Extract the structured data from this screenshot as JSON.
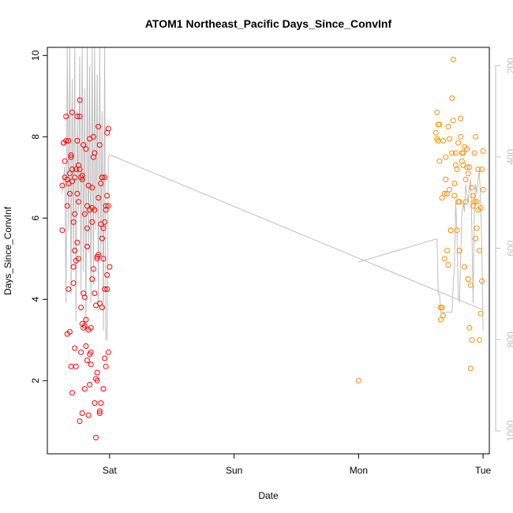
{
  "chart_data": {
    "type": "scatter",
    "title": "ATOM1 Northeast_Pacific Days_Since_ConvInf",
    "xlabel": "Date",
    "ylabel": "Days_Since_ConvInf",
    "xlim": [
      -0.5,
      3.05
    ],
    "x_ticks": [
      {
        "value": 0,
        "label": "Sat"
      },
      {
        "value": 1,
        "label": "Sun"
      },
      {
        "value": 2,
        "label": "Mon"
      },
      {
        "value": 3,
        "label": "Tue"
      }
    ],
    "ylim": [
      0.2,
      10.2
    ],
    "y_ticks": [
      2,
      4,
      6,
      8,
      10
    ],
    "y2_axis": {
      "color": "#bebebe",
      "ylim": [
        1050,
        160
      ],
      "ticks": [
        200,
        400,
        600,
        800,
        1000
      ]
    },
    "series": [
      {
        "color": "#ff0000",
        "x": [
          -0.38,
          -0.37,
          -0.36,
          -0.35,
          -0.34,
          -0.33,
          -0.32,
          -0.31,
          -0.3,
          -0.29,
          -0.28,
          -0.27,
          -0.26,
          -0.25,
          -0.24,
          -0.23,
          -0.22,
          -0.21,
          -0.2,
          -0.19,
          -0.18,
          -0.17,
          -0.16,
          -0.15,
          -0.14,
          -0.13,
          -0.12,
          -0.11,
          -0.1,
          -0.09,
          -0.08,
          -0.07,
          -0.06,
          -0.05,
          -0.04,
          -0.03,
          -0.02,
          -0.01,
          -0.38,
          -0.36,
          -0.34,
          -0.32,
          -0.3,
          -0.28,
          -0.26,
          -0.24,
          -0.22,
          -0.2,
          -0.18,
          -0.16,
          -0.14,
          -0.12,
          -0.1,
          -0.08,
          -0.06,
          -0.04,
          -0.02,
          -0.37,
          -0.35,
          -0.33,
          -0.31,
          -0.29,
          -0.27,
          -0.25,
          -0.23,
          -0.21,
          -0.19,
          -0.17,
          -0.15,
          -0.13,
          -0.11,
          -0.09,
          -0.07,
          -0.05,
          -0.03,
          -0.01,
          -0.3,
          -0.28,
          -0.26,
          -0.24,
          -0.22,
          -0.2,
          -0.18,
          -0.16,
          -0.14,
          -0.12,
          -0.1,
          -0.08,
          -0.06,
          -0.04,
          -0.02,
          -0.34,
          -0.32,
          -0.3,
          -0.28,
          -0.26,
          -0.24,
          -0.22,
          -0.2,
          -0.18,
          -0.16,
          -0.14,
          -0.12,
          -0.1,
          -0.08,
          -0.06,
          -0.04,
          -0.02,
          -0.0,
          -0.33,
          -0.31,
          -0.29,
          -0.27,
          -0.25,
          -0.23,
          -0.21,
          -0.19,
          -0.17,
          -0.15,
          -0.13,
          -0.11,
          -0.09,
          -0.07,
          -0.05,
          -0.03,
          -0.01
        ],
        "y": [
          6.8,
          7.85,
          7.4,
          7.9,
          6.3,
          4.25,
          3.2,
          7.5,
          7.2,
          5.9,
          7.0,
          7.2,
          6.6,
          6.4,
          8.9,
          3.8,
          3.4,
          4.15,
          6.1,
          7.7,
          5.3,
          6.8,
          1.9,
          2.7,
          4.5,
          7.5,
          7.6,
          2.05,
          5.0,
          6.5,
          7.8,
          6.85,
          7.0,
          5.75,
          4.25,
          6.3,
          4.25,
          6.3,
          5.7,
          7.0,
          3.15,
          7.1,
          8.6,
          6.1,
          5.4,
          7.2,
          6.95,
          1.8,
          5.75,
          6.2,
          6.75,
          1.45,
          2.0,
          1.25,
          5.5,
          7.0,
          6.55,
          7.85,
          8.5,
          6.85,
          2.35,
          4.4,
          4.95,
          7.3,
          7.0,
          3.3,
          2.85,
          1.15,
          2.4,
          4.75,
          3.85,
          8.25,
          1.45,
          5.0,
          6.2,
          2.7,
          6.9,
          5.2,
          8.5,
          1.0,
          1.2,
          3.35,
          6.3,
          7.95,
          5.9,
          6.2,
          2.2,
          3.9,
          7.0,
          2.55,
          8.1,
          6.95,
          6.6,
          1.7,
          2.8,
          7.9,
          8.5,
          7.05,
          4.05,
          2.5,
          2.65,
          6.25,
          4.15,
          5.05,
          1.2,
          3.8,
          5.9,
          4.6,
          4.8,
          7.9,
          7.55,
          4.8,
          2.35,
          5.0,
          2.7,
          7.8,
          3.5,
          3.25,
          3.3,
          8.0,
          0.6,
          5.1,
          5.85,
          1.8,
          2.35,
          8.2
        ]
      },
      {
        "color": "#ff8c00",
        "x": [
          2.0,
          2.62,
          2.63,
          2.64,
          2.65,
          2.66,
          2.67,
          2.68,
          2.69,
          2.7,
          2.71,
          2.72,
          2.73,
          2.74,
          2.75,
          2.76,
          2.77,
          2.78,
          2.79,
          2.8,
          2.81,
          2.82,
          2.83,
          2.84,
          2.85,
          2.86,
          2.87,
          2.88,
          2.89,
          2.9,
          2.91,
          2.92,
          2.93,
          2.94,
          2.95,
          2.96,
          2.97,
          2.98,
          2.99,
          3.0,
          2.64,
          2.66,
          2.68,
          2.7,
          2.72,
          2.74,
          2.76,
          2.78,
          2.8,
          2.82,
          2.84,
          2.86,
          2.88,
          2.9,
          2.92,
          2.94,
          2.96,
          2.98,
          3.0,
          2.65,
          2.69,
          2.73,
          2.77,
          2.81,
          2.85,
          2.89,
          2.93,
          2.97,
          2.63,
          2.67,
          2.71,
          2.75,
          2.79,
          2.83,
          2.87,
          2.91,
          2.95,
          2.99
        ],
        "y": [
          2.0,
          8.1,
          8.6,
          7.9,
          8.3,
          3.5,
          6.5,
          7.9,
          6.6,
          7.5,
          5.2,
          8.25,
          6.7,
          5.7,
          7.6,
          8.4,
          6.55,
          7.6,
          7.2,
          7.85,
          6.4,
          8.45,
          7.6,
          7.3,
          4.8,
          6.4,
          7.7,
          4.5,
          3.3,
          2.3,
          3.0,
          6.55,
          7.6,
          5.5,
          6.4,
          6.2,
          5.2,
          3.65,
          7.2,
          6.7,
          8.3,
          3.8,
          3.6,
          6.95,
          4.85,
          5.7,
          9.9,
          7.3,
          6.4,
          8.0,
          7.6,
          6.95,
          7.1,
          4.35,
          6.3,
          8.0,
          7.2,
          6.25,
          7.65,
          7.4,
          5.0,
          7.95,
          6.85,
          5.2,
          7.75,
          7.25,
          6.4,
          3.0,
          7.95,
          3.8,
          6.6,
          8.95,
          5.7,
          7.4,
          7.25,
          6.75,
          5.75,
          4.45
        ]
      }
    ],
    "overlay_line": {
      "color": "#bebebe",
      "axis": "y2",
      "segments": [
        {
          "x": [
            -0.38,
            -0.36,
            -0.35,
            -0.34,
            -0.33,
            -0.32,
            -0.31,
            -0.3,
            -0.29,
            -0.28,
            -0.27,
            -0.26,
            -0.25,
            -0.24,
            -0.23,
            -0.22,
            -0.21,
            -0.2,
            -0.19,
            -0.18,
            -0.17,
            -0.16,
            -0.15,
            -0.14,
            -0.13,
            -0.12,
            -0.11,
            -0.1,
            -0.09,
            -0.08,
            -0.07,
            -0.06,
            -0.05,
            -0.04,
            -0.03,
            -0.02,
            -0.01,
            0.0,
            3.0
          ],
          "y2": [
            480,
            420,
            720,
            160,
            560,
            160,
            700,
            230,
            620,
            160,
            760,
            300,
            520,
            180,
            700,
            160,
            650,
            250,
            780,
            160,
            610,
            200,
            720,
            160,
            680,
            160,
            560,
            220,
            740,
            160,
            620,
            300,
            780,
            160,
            800,
            800,
            400,
            395,
            735
          ]
        },
        {
          "x": [
            2.0,
            2.62,
            2.63,
            2.64,
            2.65,
            2.66,
            2.67,
            2.68,
            2.69,
            2.7,
            2.71,
            2.72,
            2.73,
            2.74,
            2.75,
            2.76,
            2.77,
            2.78,
            2.79,
            2.8,
            2.81,
            2.82,
            2.83,
            2.84,
            2.85,
            2.86,
            2.87,
            2.88,
            2.89,
            2.9,
            2.91,
            2.92,
            2.93,
            2.94,
            2.95,
            2.96,
            2.97,
            2.98,
            2.99,
            3.0
          ],
          "y2": [
            630,
            580,
            580,
            700,
            700,
            740,
            740,
            740,
            740,
            740,
            740,
            740,
            740,
            740,
            740,
            680,
            640,
            500,
            560,
            700,
            720,
            620,
            520,
            500,
            520,
            460,
            480,
            500,
            460,
            450,
            560,
            720,
            500,
            460,
            480,
            450,
            430,
            500,
            600,
            780
          ]
        }
      ]
    }
  }
}
